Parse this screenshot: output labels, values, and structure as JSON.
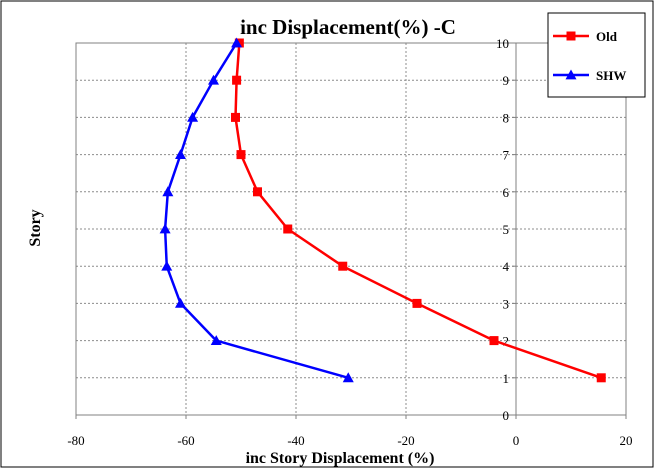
{
  "chart_data": {
    "type": "line",
    "title": "inc Displacement(%) -C",
    "xlabel": "inc Story Displacement (%)",
    "ylabel": "Story",
    "xlim": [
      -80,
      20
    ],
    "ylim": [
      0,
      10
    ],
    "x_ticks": [
      -80,
      -60,
      -40,
      -20,
      0,
      20
    ],
    "y_ticks": [
      0,
      1,
      2,
      3,
      4,
      5,
      6,
      7,
      8,
      9,
      10
    ],
    "grid": "vertical and horizontal dotted",
    "legend_position": "top-right",
    "series": [
      {
        "name": "Old",
        "color": "#ff0000",
        "marker": "square",
        "points": [
          {
            "x": 15.5,
            "y": 1
          },
          {
            "x": -4,
            "y": 2
          },
          {
            "x": -18,
            "y": 3
          },
          {
            "x": -31.5,
            "y": 4
          },
          {
            "x": -41.5,
            "y": 5
          },
          {
            "x": -47,
            "y": 6
          },
          {
            "x": -50,
            "y": 7
          },
          {
            "x": -51,
            "y": 8
          },
          {
            "x": -50.8,
            "y": 9
          },
          {
            "x": -50.3,
            "y": 10
          }
        ]
      },
      {
        "name": "SHW",
        "color": "#0000ff",
        "marker": "triangle",
        "points": [
          {
            "x": -30.5,
            "y": 1
          },
          {
            "x": -54.5,
            "y": 2
          },
          {
            "x": -61,
            "y": 3
          },
          {
            "x": -63.5,
            "y": 4
          },
          {
            "x": -63.8,
            "y": 5
          },
          {
            "x": -63.3,
            "y": 6
          },
          {
            "x": -61,
            "y": 7
          },
          {
            "x": -58.8,
            "y": 8
          },
          {
            "x": -55,
            "y": 9
          },
          {
            "x": -50.8,
            "y": 10
          }
        ]
      }
    ]
  }
}
